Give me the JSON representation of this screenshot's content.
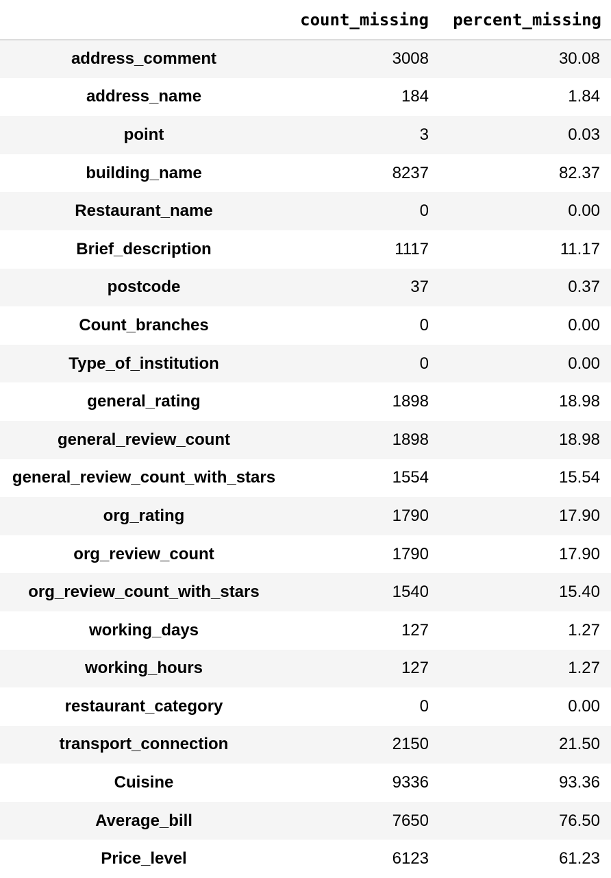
{
  "table": {
    "columns": [
      "count_missing",
      "percent_missing"
    ],
    "rows": [
      {
        "name": "address_comment",
        "count": "3008",
        "percent": "30.08"
      },
      {
        "name": "address_name",
        "count": "184",
        "percent": "1.84"
      },
      {
        "name": "point",
        "count": "3",
        "percent": "0.03"
      },
      {
        "name": "building_name",
        "count": "8237",
        "percent": "82.37"
      },
      {
        "name": "Restaurant_name",
        "count": "0",
        "percent": "0.00"
      },
      {
        "name": "Brief_description",
        "count": "1117",
        "percent": "11.17"
      },
      {
        "name": "postcode",
        "count": "37",
        "percent": "0.37"
      },
      {
        "name": "Count_branches",
        "count": "0",
        "percent": "0.00"
      },
      {
        "name": "Type_of_institution",
        "count": "0",
        "percent": "0.00"
      },
      {
        "name": "general_rating",
        "count": "1898",
        "percent": "18.98"
      },
      {
        "name": "general_review_count",
        "count": "1898",
        "percent": "18.98"
      },
      {
        "name": "general_review_count_with_stars",
        "count": "1554",
        "percent": "15.54"
      },
      {
        "name": "org_rating",
        "count": "1790",
        "percent": "17.90"
      },
      {
        "name": "org_review_count",
        "count": "1790",
        "percent": "17.90"
      },
      {
        "name": "org_review_count_with_stars",
        "count": "1540",
        "percent": "15.40"
      },
      {
        "name": "working_days",
        "count": "127",
        "percent": "1.27"
      },
      {
        "name": "working_hours",
        "count": "127",
        "percent": "1.27"
      },
      {
        "name": "restaurant_category",
        "count": "0",
        "percent": "0.00"
      },
      {
        "name": "transport_connection",
        "count": "2150",
        "percent": "21.50"
      },
      {
        "name": "Cuisine",
        "count": "9336",
        "percent": "93.36"
      },
      {
        "name": "Average_bill",
        "count": "7650",
        "percent": "76.50"
      },
      {
        "name": "Price_level",
        "count": "6123",
        "percent": "61.23"
      }
    ]
  }
}
